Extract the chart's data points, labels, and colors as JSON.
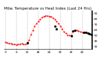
{
  "title": "Milw. Temperature vs Heat Index (Last 24 Hrs)",
  "bg_color": "#ffffff",
  "plot_bg_color": "#ffffff",
  "grid_color": "#888888",
  "line_color_red": "#ff0000",
  "line_color_black": "#000000",
  "ylim": [
    25,
    95
  ],
  "yticks": [
    30,
    40,
    50,
    60,
    70,
    80,
    90
  ],
  "num_points": 48,
  "red_y": [
    38,
    37,
    36,
    35,
    34,
    34,
    33,
    34,
    34,
    35,
    34,
    34,
    36,
    42,
    52,
    60,
    67,
    72,
    76,
    80,
    83,
    85,
    86,
    86,
    85,
    84,
    82,
    79,
    76,
    72,
    67,
    62,
    57,
    54,
    51,
    50,
    49,
    58,
    60,
    60,
    58,
    57,
    56,
    55,
    55,
    54,
    53,
    52
  ],
  "black_x": [
    12,
    27,
    28,
    36,
    37,
    38,
    43,
    44,
    45,
    46,
    47
  ],
  "black_y": [
    37,
    67,
    62,
    49,
    58,
    60,
    55,
    55,
    54,
    53,
    52
  ],
  "vgrid_x": [
    0,
    6,
    12,
    18,
    24,
    30,
    36,
    42
  ],
  "title_fontsize": 4.0,
  "tick_fontsize": 3.2,
  "figsize": [
    1.6,
    0.87
  ],
  "dpi": 100
}
